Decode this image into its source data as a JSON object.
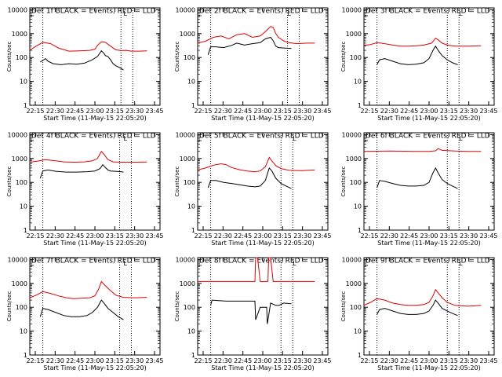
{
  "figure": {
    "title_template": "Det {n}f BLACK = Events, RED = LLD",
    "xlabel": "Start Time (11-May-15 22:05:20)",
    "ylabel": "Counts/sec",
    "black_color": "#000000",
    "red_color": "#e00000",
    "corner_mark": "L"
  },
  "chart_data": [
    {
      "type": "line",
      "panel": 1,
      "title": "Det 1f BLACK = Events, RED = LLD",
      "xlabel": "Start Time (11-May-15 22:05:20)",
      "ylabel": "Counts/sec",
      "x_ticks": [
        "22:15",
        "22:30",
        "22:45",
        "23:00",
        "23:15",
        "23:30",
        "23:45"
      ],
      "y_ticks": [
        "1",
        "10",
        "100",
        "1000",
        "10000"
      ],
      "xlim": [
        0,
        100
      ],
      "ylim": [
        1,
        12000
      ],
      "y_scale": "log",
      "vlines": [
        10,
        70,
        79
      ],
      "marker_x": 72,
      "series": [
        {
          "name": "LLD",
          "color": "red",
          "x": [
            0,
            4,
            10,
            16,
            22,
            30,
            38,
            46,
            50,
            52,
            55,
            58,
            62,
            66,
            70,
            74,
            78,
            84,
            90
          ],
          "y": [
            200,
            280,
            430,
            380,
            250,
            185,
            190,
            200,
            220,
            320,
            450,
            430,
            300,
            210,
            195,
            200,
            185,
            185,
            190
          ]
        },
        {
          "name": "Events",
          "color": "black",
          "x": [
            8,
            10,
            12,
            14,
            18,
            24,
            30,
            36,
            42,
            48,
            52,
            55,
            57,
            58,
            60,
            62,
            64,
            66,
            68,
            70,
            72
          ],
          "y": [
            65,
            75,
            90,
            70,
            55,
            50,
            55,
            52,
            58,
            80,
            110,
            190,
            150,
            120,
            110,
            80,
            55,
            45,
            40,
            35,
            30
          ]
        }
      ]
    },
    {
      "type": "line",
      "panel": 2,
      "title": "Det 2f BLACK = Events, RED = LLD",
      "xlabel": "Start Time (11-May-15 22:05:20)",
      "ylabel": "Counts/sec",
      "x_ticks": [
        "22:15",
        "22:30",
        "22:45",
        "23:00",
        "23:15",
        "23:30",
        "23:45"
      ],
      "y_ticks": [
        "1",
        "10",
        "100",
        "1000",
        "10000"
      ],
      "xlim": [
        0,
        100
      ],
      "ylim": [
        1,
        12000
      ],
      "y_scale": "log",
      "vlines": [
        10,
        69,
        78
      ],
      "marker_x": 69,
      "series": [
        {
          "name": "LLD",
          "color": "red",
          "x": [
            0,
            6,
            12,
            18,
            24,
            30,
            36,
            42,
            48,
            52,
            56,
            58,
            60,
            62,
            66,
            70,
            76,
            84,
            90
          ],
          "y": [
            400,
            480,
            700,
            800,
            600,
            900,
            1000,
            700,
            800,
            1200,
            2000,
            1800,
            1000,
            700,
            500,
            420,
            380,
            400,
            400
          ]
        },
        {
          "name": "Events",
          "color": "black",
          "x": [
            8,
            10,
            14,
            20,
            26,
            30,
            36,
            42,
            48,
            52,
            56,
            58,
            60,
            62,
            66,
            72
          ],
          "y": [
            130,
            280,
            280,
            260,
            320,
            400,
            330,
            380,
            420,
            600,
            700,
            500,
            300,
            260,
            250,
            240
          ]
        }
      ]
    },
    {
      "type": "line",
      "panel": 3,
      "title": "Det 3f BLACK = Events, RED = LLD",
      "xlabel": "Start Time (11-May-15 22:05:20)",
      "ylabel": "Counts/sec",
      "x_ticks": [
        "22:15",
        "22:30",
        "22:45",
        "23:00",
        "23:15",
        "23:30",
        "23:45"
      ],
      "y_ticks": [
        "1",
        "10",
        "100",
        "1000",
        "10000"
      ],
      "xlim": [
        0,
        100
      ],
      "ylim": [
        1,
        12000
      ],
      "y_scale": "log",
      "vlines": [
        10,
        64,
        73
      ],
      "marker_x": 73,
      "series": [
        {
          "name": "LLD",
          "color": "red",
          "x": [
            0,
            5,
            10,
            16,
            22,
            28,
            34,
            40,
            46,
            52,
            55,
            57,
            60,
            64,
            70,
            80,
            90
          ],
          "y": [
            320,
            350,
            420,
            380,
            330,
            300,
            300,
            310,
            330,
            400,
            650,
            550,
            400,
            330,
            300,
            300,
            310
          ]
        },
        {
          "name": "Events",
          "color": "black",
          "x": [
            10,
            12,
            16,
            22,
            28,
            34,
            40,
            46,
            50,
            53,
            55,
            57,
            60,
            64,
            68,
            72
          ],
          "y": [
            50,
            80,
            90,
            70,
            55,
            50,
            52,
            60,
            90,
            200,
            300,
            200,
            120,
            80,
            60,
            50
          ]
        }
      ]
    },
    {
      "type": "line",
      "panel": 4,
      "title": "Det 4f BLACK = Events, RED = LLD",
      "xlabel": "Start Time (11-May-15 22:05:20)",
      "ylabel": "Counts/sec",
      "x_ticks": [
        "22:15",
        "22:30",
        "22:45",
        "23:00",
        "23:15",
        "23:30",
        "23:45"
      ],
      "y_ticks": [
        "1",
        "10",
        "100",
        "1000",
        "10000"
      ],
      "xlim": [
        0,
        100
      ],
      "ylim": [
        1,
        12000
      ],
      "y_scale": "log",
      "vlines": [
        10,
        69,
        78
      ],
      "marker_x": 72,
      "series": [
        {
          "name": "LLD",
          "color": "red",
          "x": [
            0,
            6,
            12,
            18,
            26,
            34,
            42,
            48,
            52,
            55,
            57,
            60,
            64,
            70,
            80,
            90
          ],
          "y": [
            700,
            780,
            900,
            820,
            720,
            700,
            720,
            800,
            1000,
            2000,
            1500,
            900,
            720,
            700,
            700,
            710
          ]
        },
        {
          "name": "Events",
          "color": "black",
          "x": [
            8,
            10,
            14,
            20,
            28,
            36,
            44,
            50,
            54,
            56,
            58,
            60,
            62,
            66,
            70,
            72
          ],
          "y": [
            150,
            300,
            330,
            290,
            270,
            270,
            280,
            300,
            380,
            550,
            420,
            330,
            300,
            290,
            280,
            270
          ]
        }
      ]
    },
    {
      "type": "line",
      "panel": 5,
      "title": "Det 5f BLACK = Events, RED = LLD",
      "xlabel": "Start Time (11-May-15 22:05:20)",
      "ylabel": "Counts/sec",
      "x_ticks": [
        "22:15",
        "22:30",
        "22:45",
        "23:00",
        "23:15",
        "23:30",
        "23:45"
      ],
      "y_ticks": [
        "1",
        "10",
        "100",
        "1000",
        "10000"
      ],
      "xlim": [
        0,
        100
      ],
      "ylim": [
        1,
        12000
      ],
      "y_scale": "log",
      "vlines": [
        10,
        64,
        73
      ],
      "marker_x": 73,
      "series": [
        {
          "name": "LLD",
          "color": "red",
          "x": [
            0,
            6,
            12,
            18,
            22,
            26,
            32,
            38,
            44,
            48,
            52,
            55,
            57,
            60,
            64,
            70,
            80,
            90
          ],
          "y": [
            330,
            400,
            520,
            600,
            550,
            420,
            340,
            300,
            280,
            300,
            450,
            1100,
            800,
            500,
            380,
            320,
            310,
            330
          ]
        },
        {
          "name": "Events",
          "color": "black",
          "x": [
            8,
            10,
            14,
            20,
            26,
            32,
            38,
            44,
            48,
            52,
            55,
            57,
            60,
            64,
            68,
            72
          ],
          "y": [
            60,
            120,
            120,
            100,
            90,
            80,
            70,
            65,
            70,
            120,
            400,
            300,
            150,
            90,
            70,
            55
          ]
        }
      ]
    },
    {
      "type": "line",
      "panel": 6,
      "title": "Det 6f BLACK = Events, RED = LLD",
      "xlabel": "Start Time (11-May-15 22:05:20)",
      "ylabel": "Counts/sec",
      "x_ticks": [
        "22:15",
        "22:30",
        "22:45",
        "23:00",
        "23:15",
        "23:30",
        "23:45"
      ],
      "y_ticks": [
        "1",
        "10",
        "100",
        "1000",
        "10000"
      ],
      "xlim": [
        0,
        100
      ],
      "ylim": [
        1,
        12000
      ],
      "y_scale": "log",
      "vlines": [
        10,
        64,
        73
      ],
      "marker_x": 73,
      "series": [
        {
          "name": "LLD",
          "color": "red",
          "x": [
            0,
            20,
            40,
            50,
            55,
            57,
            60,
            70,
            80,
            90
          ],
          "y": [
            2000,
            2050,
            2000,
            2000,
            2100,
            2600,
            2200,
            2050,
            2000,
            2000
          ]
        },
        {
          "name": "Events",
          "color": "black",
          "x": [
            10,
            12,
            16,
            22,
            28,
            34,
            40,
            46,
            50,
            53,
            55,
            57,
            60,
            64,
            68,
            72
          ],
          "y": [
            60,
            120,
            110,
            90,
            75,
            70,
            70,
            75,
            100,
            250,
            400,
            250,
            130,
            90,
            70,
            55
          ]
        }
      ]
    },
    {
      "type": "line",
      "panel": 7,
      "title": "Det 7f BLACK = Events, RED = LLD",
      "xlabel": "Start Time (11-May-15 22:05:20)",
      "ylabel": "Counts/sec",
      "x_ticks": [
        "22:15",
        "22:30",
        "22:45",
        "23:00",
        "23:15",
        "23:30",
        "23:45"
      ],
      "y_ticks": [
        "1",
        "10",
        "100",
        "1000",
        "10000"
      ],
      "xlim": [
        0,
        100
      ],
      "ylim": [
        1,
        12000
      ],
      "y_scale": "log",
      "vlines": [
        10,
        69,
        78
      ],
      "marker_x": 72,
      "series": [
        {
          "name": "LLD",
          "color": "red",
          "x": [
            0,
            5,
            10,
            16,
            22,
            28,
            34,
            40,
            46,
            50,
            53,
            55,
            58,
            62,
            66,
            72,
            80,
            90
          ],
          "y": [
            250,
            320,
            450,
            380,
            300,
            250,
            230,
            240,
            250,
            300,
            600,
            1200,
            800,
            500,
            320,
            260,
            250,
            260
          ]
        },
        {
          "name": "Events",
          "color": "black",
          "x": [
            8,
            10,
            14,
            20,
            26,
            32,
            38,
            44,
            48,
            52,
            55,
            57,
            60,
            64,
            68,
            72
          ],
          "y": [
            40,
            90,
            80,
            60,
            45,
            40,
            40,
            45,
            60,
            100,
            200,
            150,
            90,
            60,
            40,
            30
          ]
        }
      ]
    },
    {
      "type": "line",
      "panel": 8,
      "title": "Det 8f BLACK = Events, RED = LLD",
      "xlabel": "Start Time (11-May-15 22:05:20)",
      "ylabel": "Counts/sec",
      "x_ticks": [
        "22:15",
        "22:30",
        "22:45",
        "23:00",
        "23:15",
        "23:30",
        "23:45"
      ],
      "y_ticks": [
        "1",
        "10",
        "100",
        "1000",
        "10000"
      ],
      "xlim": [
        0,
        100
      ],
      "ylim": [
        1,
        12000
      ],
      "y_scale": "log",
      "vlines": [
        10,
        64,
        73
      ],
      "marker_x": 73,
      "series": [
        {
          "name": "LLD",
          "color": "red",
          "x": [
            0,
            42,
            44,
            44.5,
            46,
            48,
            52,
            54,
            54.5,
            56,
            58,
            62,
            64,
            70,
            80,
            90
          ],
          "y": [
            1200,
            1200,
            1200,
            12000,
            12000,
            1200,
            1200,
            1200,
            12000,
            12000,
            1200,
            1200,
            1200,
            1200,
            1200,
            1200
          ]
        },
        {
          "name": "Events",
          "color": "black",
          "x": [
            10,
            11,
            16,
            22,
            28,
            34,
            40,
            42,
            44,
            44.5,
            48,
            52,
            53,
            53.5,
            56,
            60,
            62,
            62.5,
            66,
            72
          ],
          "y": [
            120,
            200,
            190,
            180,
            180,
            180,
            180,
            180,
            180,
            30,
            100,
            100,
            100,
            20,
            150,
            120,
            120,
            120,
            150,
            140
          ]
        }
      ]
    },
    {
      "type": "line",
      "panel": 9,
      "title": "Det 9f BLACK = Events, RED = LLD",
      "xlabel": "Start Time (11-May-15 22:05:20)",
      "ylabel": "Counts/sec",
      "x_ticks": [
        "22:15",
        "22:30",
        "22:45",
        "23:00",
        "23:15",
        "23:30",
        "23:45"
      ],
      "y_ticks": [
        "1",
        "10",
        "100",
        "1000",
        "10000"
      ],
      "xlim": [
        0,
        100
      ],
      "ylim": [
        1,
        12000
      ],
      "y_scale": "log",
      "vlines": [
        10,
        64,
        73
      ],
      "marker_x": 73,
      "series": [
        {
          "name": "LLD",
          "color": "red",
          "x": [
            0,
            5,
            10,
            16,
            22,
            28,
            34,
            40,
            46,
            50,
            53,
            55,
            57,
            60,
            64,
            70,
            80,
            90
          ],
          "y": [
            120,
            160,
            230,
            200,
            150,
            130,
            120,
            120,
            130,
            160,
            300,
            550,
            400,
            250,
            160,
            120,
            110,
            120
          ]
        },
        {
          "name": "Events",
          "color": "black",
          "x": [
            10,
            12,
            16,
            22,
            28,
            34,
            40,
            46,
            50,
            53,
            55,
            57,
            60,
            64,
            68,
            72
          ],
          "y": [
            50,
            80,
            90,
            70,
            55,
            50,
            50,
            55,
            70,
            120,
            200,
            150,
            90,
            70,
            55,
            45
          ]
        }
      ]
    }
  ]
}
